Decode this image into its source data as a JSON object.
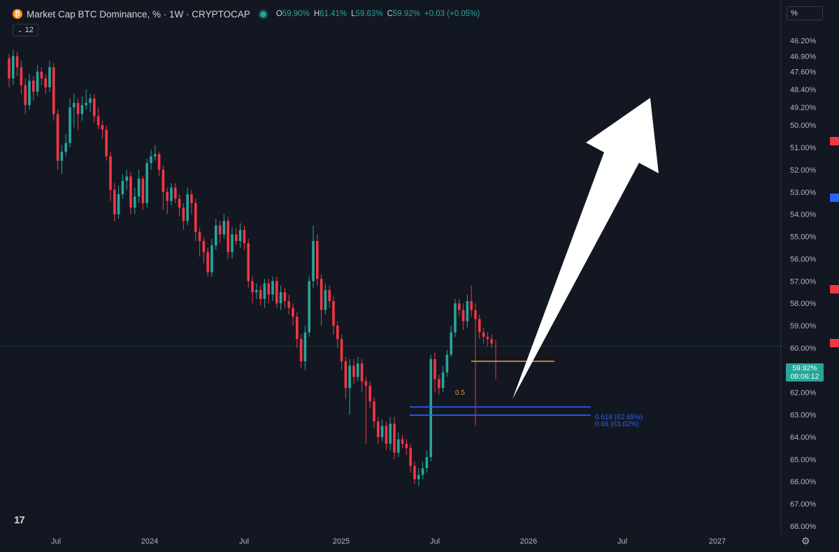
{
  "header": {
    "title": "Market Cap BTC Dominance, % · 1W · CRYPTOCAP",
    "logo_glyph": "₿",
    "ohlc": [
      {
        "key": "O",
        "value": "59.90%"
      },
      {
        "key": "H",
        "value": "61.41%"
      },
      {
        "key": "L",
        "value": "59.63%"
      },
      {
        "key": "C",
        "value": "59.92%"
      }
    ],
    "change": "+0.03 (+0.05%)",
    "interval_label": "12"
  },
  "unit_button": "%",
  "price_label": {
    "value": "59.92%",
    "countdown": "08:06:12"
  },
  "fib_levels": [
    {
      "label": "0.5",
      "value": 60.6,
      "color": "#f7931a"
    },
    {
      "label": "0.618 (62.65%)",
      "value": 62.65,
      "color": "#2962ff"
    },
    {
      "label": "0.66 (63.02%)",
      "value": 63.02,
      "color": "#2962ff"
    }
  ],
  "logo_text": "17",
  "colors": {
    "background": "#131722",
    "up": "#26a69a",
    "down": "#f23645",
    "text": "#d1d4dc",
    "arrow": "#ffffff"
  },
  "chart_data": {
    "type": "candlestick",
    "title": "Market Cap BTC Dominance, %",
    "y_axis": {
      "scale": "linear",
      "inverted": true,
      "range": [
        45.6,
        68.1
      ]
    },
    "y_ticks": [
      "46.20%",
      "46.90%",
      "47.60%",
      "48.40%",
      "49.20%",
      "50.00%",
      "51.00%",
      "52.00%",
      "53.00%",
      "54.00%",
      "55.00%",
      "56.00%",
      "57.00%",
      "58.00%",
      "59.00%",
      "60.00%",
      "61.00%",
      "62.00%",
      "63.00%",
      "64.00%",
      "65.00%",
      "66.00%",
      "67.00%",
      "68.00%"
    ],
    "x_ticks": [
      "Jul",
      "2024",
      "Jul",
      "2025",
      "Jul",
      "2026",
      "Jul",
      "2027"
    ],
    "last_value": 59.92,
    "candles": [
      [
        47.0,
        47.9,
        46.8,
        48.3
      ],
      [
        47.9,
        46.9,
        46.6,
        48.2
      ],
      [
        46.9,
        47.4,
        46.7,
        47.8
      ],
      [
        47.4,
        48.2,
        47.1,
        48.6
      ],
      [
        48.2,
        49.1,
        47.9,
        49.5
      ],
      [
        49.1,
        48.0,
        47.7,
        49.3
      ],
      [
        48.0,
        48.5,
        47.8,
        48.9
      ],
      [
        48.5,
        47.6,
        47.3,
        48.7
      ],
      [
        47.6,
        47.9,
        47.4,
        48.2
      ],
      [
        47.9,
        48.3,
        47.7,
        48.6
      ],
      [
        48.3,
        47.4,
        47.1,
        48.5
      ],
      [
        47.4,
        49.5,
        47.2,
        49.8
      ],
      [
        49.5,
        51.6,
        49.3,
        52.0
      ],
      [
        51.6,
        51.2,
        50.9,
        52.2
      ],
      [
        51.2,
        50.8,
        50.4,
        51.4
      ],
      [
        50.8,
        49.2,
        48.8,
        51.0
      ],
      [
        49.2,
        49.0,
        48.6,
        50.1
      ],
      [
        49.0,
        49.5,
        48.8,
        50.2
      ],
      [
        49.5,
        49.1,
        48.7,
        49.8
      ],
      [
        49.1,
        49.0,
        48.4,
        49.3
      ],
      [
        49.0,
        48.8,
        48.6,
        49.4
      ],
      [
        48.8,
        49.6,
        48.6,
        49.9
      ],
      [
        49.6,
        50.0,
        49.2,
        50.2
      ],
      [
        50.0,
        50.2,
        49.8,
        50.6
      ],
      [
        50.2,
        51.4,
        50.0,
        51.6
      ],
      [
        51.4,
        52.9,
        51.2,
        53.4
      ],
      [
        52.9,
        54.0,
        52.6,
        54.3
      ],
      [
        54.0,
        53.1,
        52.7,
        54.2
      ],
      [
        53.1,
        52.5,
        52.2,
        53.3
      ],
      [
        52.5,
        52.3,
        52.0,
        52.9
      ],
      [
        52.3,
        53.7,
        52.1,
        54.0
      ],
      [
        53.7,
        53.2,
        52.8,
        54.0
      ],
      [
        53.2,
        52.4,
        52.0,
        53.5
      ],
      [
        52.4,
        53.5,
        52.3,
        53.8
      ],
      [
        53.5,
        51.7,
        51.5,
        53.7
      ],
      [
        51.7,
        51.4,
        51.1,
        52.0
      ],
      [
        51.4,
        51.3,
        50.9,
        51.6
      ],
      [
        51.3,
        52.0,
        51.2,
        52.3
      ],
      [
        52.0,
        53.0,
        51.8,
        53.8
      ],
      [
        53.0,
        53.4,
        52.8,
        54.0
      ],
      [
        53.4,
        52.8,
        52.6,
        53.6
      ],
      [
        52.8,
        53.3,
        52.6,
        53.5
      ],
      [
        53.3,
        53.7,
        53.1,
        54.1
      ],
      [
        53.7,
        54.3,
        53.5,
        54.7
      ],
      [
        54.3,
        53.1,
        52.8,
        54.5
      ],
      [
        53.1,
        53.5,
        52.9,
        54.0
      ],
      [
        53.5,
        54.8,
        53.3,
        55.2
      ],
      [
        54.8,
        55.2,
        54.6,
        55.9
      ],
      [
        55.2,
        55.7,
        55.0,
        56.2
      ],
      [
        55.7,
        56.6,
        55.5,
        56.8
      ],
      [
        56.6,
        55.4,
        55.1,
        56.8
      ],
      [
        55.4,
        54.5,
        54.2,
        55.6
      ],
      [
        54.5,
        54.9,
        54.3,
        55.3
      ],
      [
        54.9,
        54.3,
        54.0,
        55.1
      ],
      [
        54.3,
        55.7,
        54.1,
        56.0
      ],
      [
        55.7,
        54.9,
        54.6,
        56.0
      ],
      [
        54.9,
        55.2,
        54.6,
        55.4
      ],
      [
        55.2,
        54.7,
        54.4,
        55.5
      ],
      [
        54.7,
        55.3,
        54.5,
        55.6
      ],
      [
        55.3,
        57.0,
        55.1,
        57.3
      ],
      [
        57.0,
        57.5,
        56.8,
        58.0
      ],
      [
        57.5,
        57.4,
        57.1,
        57.8
      ],
      [
        57.4,
        57.8,
        57.2,
        58.1
      ],
      [
        57.8,
        57.1,
        56.9,
        58.2
      ],
      [
        57.1,
        57.6,
        56.9,
        58.0
      ],
      [
        57.6,
        57.0,
        56.8,
        57.9
      ],
      [
        57.0,
        58.0,
        56.8,
        58.2
      ],
      [
        58.0,
        57.5,
        57.2,
        58.3
      ],
      [
        57.5,
        57.9,
        57.3,
        58.2
      ],
      [
        57.9,
        58.2,
        57.6,
        58.5
      ],
      [
        58.2,
        58.6,
        58.0,
        59.0
      ],
      [
        58.6,
        59.6,
        58.4,
        60.0
      ],
      [
        59.6,
        60.6,
        59.4,
        60.9
      ],
      [
        60.6,
        59.3,
        59.0,
        61.0
      ],
      [
        59.3,
        57.0,
        56.8,
        59.5
      ],
      [
        57.0,
        55.2,
        54.5,
        57.3
      ],
      [
        55.2,
        56.9,
        54.9,
        57.2
      ],
      [
        56.9,
        58.3,
        56.7,
        59.0
      ],
      [
        58.3,
        57.4,
        57.1,
        58.5
      ],
      [
        57.4,
        57.9,
        57.2,
        58.2
      ],
      [
        57.9,
        59.0,
        57.7,
        59.4
      ],
      [
        59.0,
        59.6,
        58.8,
        60.0
      ],
      [
        59.6,
        60.6,
        59.4,
        61.0
      ],
      [
        60.6,
        61.8,
        60.4,
        62.3
      ],
      [
        61.8,
        60.8,
        60.5,
        63.0
      ],
      [
        60.8,
        61.3,
        60.5,
        61.6
      ],
      [
        61.3,
        60.7,
        60.4,
        61.5
      ],
      [
        60.7,
        61.5,
        60.5,
        62.0
      ],
      [
        61.5,
        61.7,
        61.3,
        64.3
      ],
      [
        61.7,
        62.4,
        61.5,
        62.7
      ],
      [
        62.4,
        63.3,
        62.2,
        63.6
      ],
      [
        63.3,
        64.0,
        63.1,
        64.3
      ],
      [
        64.0,
        63.5,
        63.2,
        64.2
      ],
      [
        63.5,
        64.3,
        63.3,
        64.6
      ],
      [
        64.3,
        63.4,
        63.1,
        64.6
      ],
      [
        63.4,
        64.7,
        63.1,
        65.0
      ],
      [
        64.7,
        64.1,
        63.8,
        64.9
      ],
      [
        64.1,
        64.3,
        63.9,
        64.5
      ],
      [
        64.3,
        64.5,
        64.1,
        64.8
      ],
      [
        64.5,
        65.3,
        64.3,
        65.6
      ],
      [
        65.3,
        65.9,
        65.1,
        66.1
      ],
      [
        65.9,
        65.7,
        65.4,
        66.2
      ],
      [
        65.7,
        65.4,
        65.1,
        65.9
      ],
      [
        65.4,
        64.9,
        64.6,
        65.6
      ],
      [
        64.9,
        60.5,
        60.3,
        65.1
      ],
      [
        60.5,
        61.4,
        60.2,
        62.0
      ],
      [
        61.4,
        61.8,
        61.2,
        62.1
      ],
      [
        61.8,
        61.1,
        60.8,
        62.0
      ],
      [
        61.1,
        60.3,
        60.1,
        61.3
      ],
      [
        60.3,
        59.3,
        59.0,
        60.4
      ],
      [
        59.3,
        58.0,
        57.8,
        59.5
      ],
      [
        58.0,
        58.3,
        57.8,
        58.6
      ],
      [
        58.3,
        58.8,
        58.0,
        59.2
      ],
      [
        58.8,
        57.9,
        57.6,
        59.1
      ],
      [
        57.9,
        58.3,
        57.2,
        58.6
      ],
      [
        58.3,
        58.7,
        58.0,
        63.5
      ],
      [
        58.7,
        59.3,
        58.5,
        59.6
      ],
      [
        59.3,
        59.5,
        59.1,
        59.8
      ],
      [
        59.5,
        59.6,
        59.3,
        59.9
      ],
      [
        59.6,
        59.8,
        59.4,
        60.0
      ],
      [
        59.9,
        59.92,
        59.63,
        61.41
      ]
    ]
  }
}
